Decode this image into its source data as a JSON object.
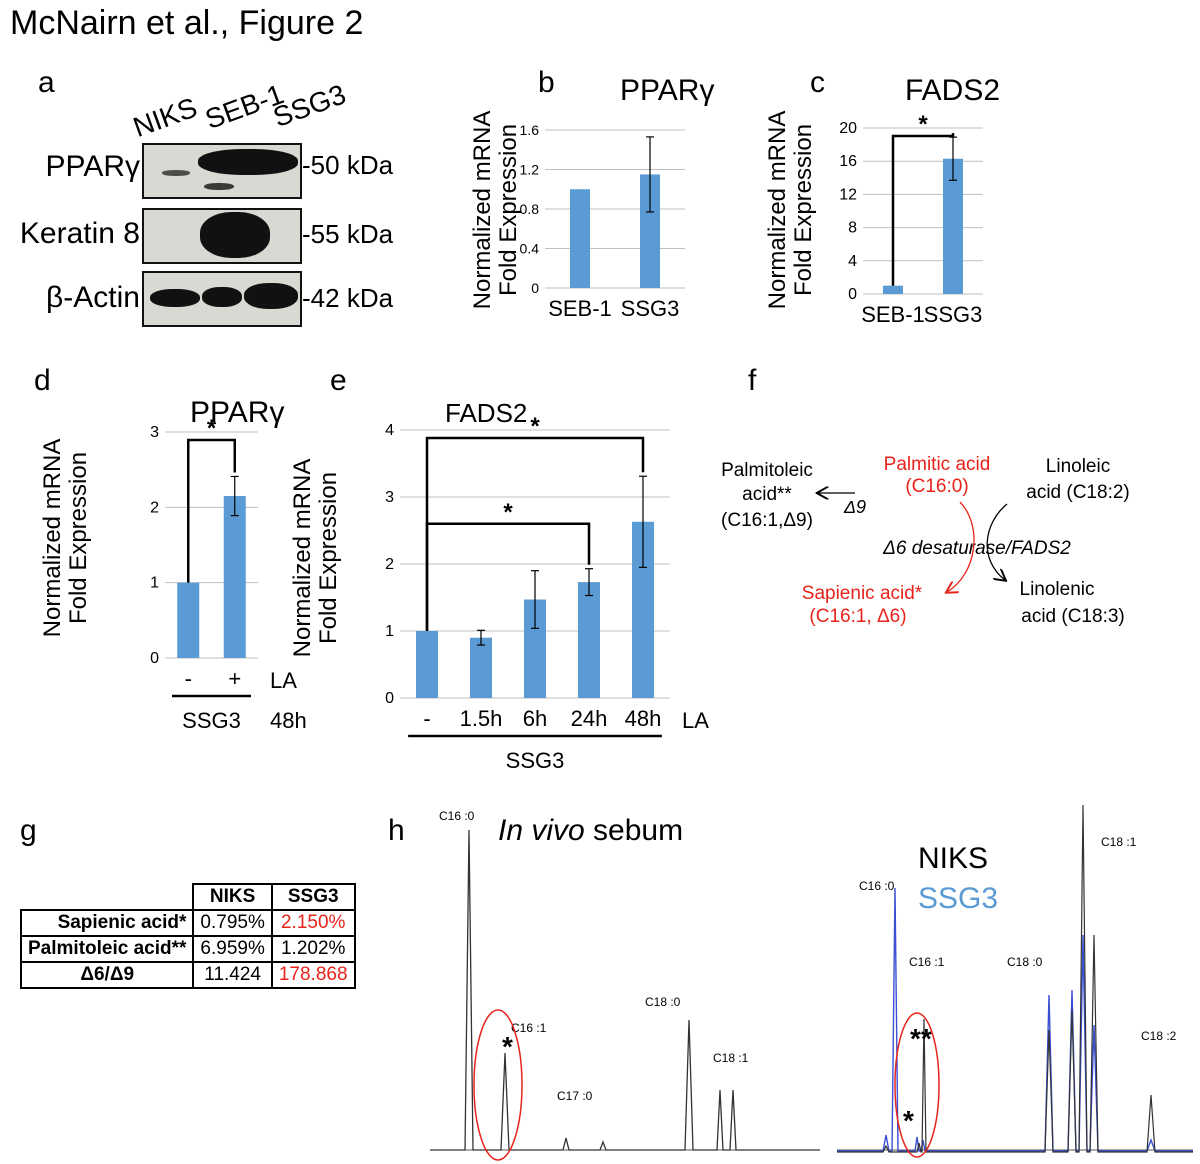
{
  "figure_title": "McNairn et al., Figure 2",
  "colors": {
    "bar": "#5b9bd5",
    "highlight": "#e8231b",
    "grid": "#bfbfbf",
    "niks_trace": "#333333",
    "ssg3_trace": "#3a4fd4"
  },
  "panel_a": {
    "letter": "a",
    "lanes": [
      "NIKS",
      "SEB-1",
      "SSG3"
    ],
    "rows": [
      {
        "label": "PPARγ",
        "size": "50 kDa"
      },
      {
        "label": "Keratin 8",
        "size": "55 kDa"
      },
      {
        "label": "β-Actin",
        "size": "42 kDa"
      }
    ]
  },
  "panel_g": {
    "letter": "g",
    "columns": [
      "NIKS",
      "SSG3"
    ],
    "rows": [
      {
        "label": "Sapienic acid*",
        "niks": "0.795%",
        "ssg3": "2.150%"
      },
      {
        "label": "Palmitoleic acid**",
        "niks": "6.959%",
        "ssg3": "1.202%"
      },
      {
        "label": "Δ6/Δ9",
        "niks": "11.424",
        "ssg3": "178.868"
      }
    ]
  },
  "panel_f": {
    "letter": "f",
    "palmitic": [
      "Palmitic acid",
      "(C16:0)"
    ],
    "linoleic": [
      "Linoleic",
      "acid (C18:2)"
    ],
    "palmitoleic": [
      "Palmitoleic",
      "acid**",
      "(C16:1,Δ9)"
    ],
    "delta9": "Δ9",
    "enzyme": "Δ6 desaturase/FADS2",
    "sapienic": [
      "Sapienic acid*",
      "(C16:1, Δ6)"
    ],
    "linolenic": [
      "Linolenic",
      "acid (C18:3)"
    ]
  },
  "chart_data": [
    {
      "panel": "b",
      "type": "bar",
      "title": "PPARγ",
      "ylabel": [
        "Normalized mRNA",
        "Fold Expression"
      ],
      "categories": [
        "SEB-1",
        "SSG3"
      ],
      "values": [
        1.0,
        1.15
      ],
      "errors": [
        0.0,
        0.38
      ],
      "ylim": [
        0,
        1.6
      ],
      "yticks": [
        "0",
        "0.4",
        "0.8",
        "1.2",
        "1.6"
      ],
      "grid": true
    },
    {
      "panel": "c",
      "type": "bar",
      "title": "FADS2",
      "ylabel": [
        "Normalized mRNA",
        "Fold Expression"
      ],
      "categories": [
        "SEB-1",
        "SSG3"
      ],
      "values": [
        1.0,
        16.3
      ],
      "errors": [
        0.0,
        2.6
      ],
      "ylim": [
        0,
        20
      ],
      "yticks": [
        "0",
        "4",
        "8",
        "12",
        "16",
        "20"
      ],
      "significance": [
        {
          "from": 0,
          "to": 1,
          "label": "*"
        }
      ],
      "grid": true
    },
    {
      "panel": "d",
      "type": "bar",
      "title": "PPARγ",
      "ylabel": [
        "Normalized mRNA",
        "Fold Expression"
      ],
      "categories": [
        "-",
        "+"
      ],
      "values": [
        1.0,
        2.15
      ],
      "errors": [
        0.0,
        0.26
      ],
      "ylim": [
        0,
        3
      ],
      "yticks": [
        "0",
        "1",
        "2",
        "3"
      ],
      "significance": [
        {
          "from": 0,
          "to": 1,
          "label": "*"
        }
      ],
      "treatment_label": "LA",
      "treatment_time": "48h",
      "group_label": "SSG3",
      "grid": true
    },
    {
      "panel": "e",
      "type": "bar",
      "title": "FADS2",
      "ylabel": [
        "Normalized mRNA",
        "Fold Expression"
      ],
      "categories": [
        "-",
        "1.5h",
        "6h",
        "24h",
        "48h"
      ],
      "values": [
        1.0,
        0.9,
        1.47,
        1.73,
        2.63
      ],
      "errors": [
        0.0,
        0.11,
        0.43,
        0.2,
        0.68
      ],
      "ylim": [
        0,
        4
      ],
      "yticks": [
        "0",
        "1",
        "2",
        "3",
        "4"
      ],
      "significance": [
        {
          "from": 0,
          "to": 4,
          "label": "*"
        },
        {
          "from": 0,
          "to": 3,
          "label": "*"
        }
      ],
      "treatment_label": "LA",
      "group_label": "SSG3",
      "grid": true
    },
    {
      "panel": "h",
      "type": "line",
      "title": "In vivo sebum",
      "traces": [
        {
          "name": "",
          "peaks": [
            {
              "label": "C16 :0",
              "height": 1.0
            },
            {
              "label": "C16 :1",
              "height": 0.3
            },
            {
              "label": "C17 :0",
              "height": 0.04
            },
            {
              "label": "C18 :0",
              "height": 0.39
            },
            {
              "label": "C18 :1",
              "height": 0.2
            }
          ]
        }
      ]
    },
    {
      "panel": "h",
      "type": "line",
      "series": [
        {
          "name": "NIKS"
        },
        {
          "name": "SSG3"
        }
      ],
      "peak_labels": [
        "C16 :0",
        "C16 :1",
        "C18 :0",
        "C18 :1",
        "C18 :2"
      ]
    }
  ],
  "panel_h": {
    "letter": "h",
    "title_italic": "In vivo",
    "title_rest": " sebum"
  }
}
